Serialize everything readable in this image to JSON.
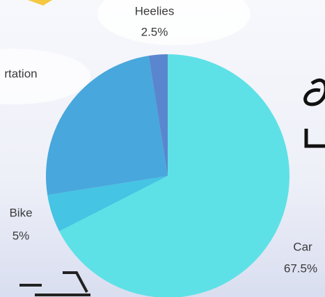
{
  "chart_data": {
    "type": "pie",
    "categories": [
      "Car",
      "Bike",
      "rtation",
      "Heelies"
    ],
    "values": [
      67.5,
      5,
      25,
      2.5
    ],
    "value_labels": [
      "67.5%",
      "5%",
      null,
      "2.5%"
    ],
    "colors": [
      "#5ee1e6",
      "#45c4e4",
      "#48a7dc",
      "#5a86cf"
    ]
  }
}
